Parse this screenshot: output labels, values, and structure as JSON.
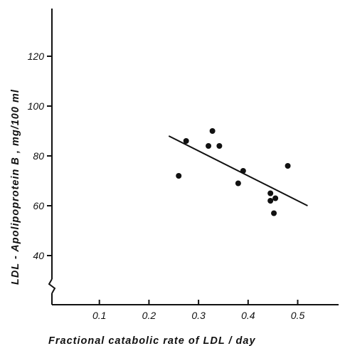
{
  "chart_data": {
    "type": "scatter",
    "xlabel": "Fractional  catabolic rate of  LDL / day",
    "ylabel": "LDL - Apolipoprotein B ,  mg/100 ml",
    "x_ticks": [
      0.1,
      0.2,
      0.3,
      0.4,
      0.5
    ],
    "x_tick_labels": [
      "0.1",
      "0.2",
      "0.3",
      "0.4",
      "0.5"
    ],
    "y_ticks": [
      40,
      60,
      80,
      100,
      120
    ],
    "y_tick_labels": [
      "40",
      "60",
      "80",
      "100",
      "120"
    ],
    "xlim": [
      0.0,
      0.62
    ],
    "ylim": [
      35,
      140
    ],
    "y_axis_break": true,
    "grid": false,
    "points": [
      {
        "x": 0.26,
        "y": 72
      },
      {
        "x": 0.275,
        "y": 86
      },
      {
        "x": 0.32,
        "y": 84
      },
      {
        "x": 0.328,
        "y": 90
      },
      {
        "x": 0.342,
        "y": 84
      },
      {
        "x": 0.38,
        "y": 69
      },
      {
        "x": 0.39,
        "y": 74
      },
      {
        "x": 0.445,
        "y": 65
      },
      {
        "x": 0.445,
        "y": 62
      },
      {
        "x": 0.452,
        "y": 57
      },
      {
        "x": 0.455,
        "y": 63
      },
      {
        "x": 0.48,
        "y": 76
      }
    ],
    "regression_line": {
      "x_start": 0.24,
      "y_start": 88,
      "x_end": 0.52,
      "y_end": 60
    }
  }
}
